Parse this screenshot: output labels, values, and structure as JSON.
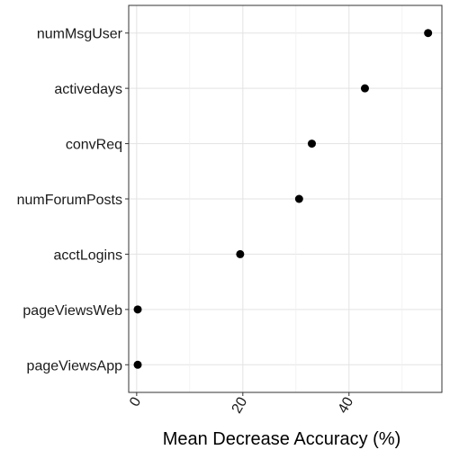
{
  "chart_data": {
    "type": "scatter",
    "title": "",
    "xlabel": "Mean Decrease Accuracy (%)",
    "ylabel": "",
    "xlim": [
      -1.5,
      57.5
    ],
    "xticks": [
      0,
      20,
      40
    ],
    "xtick_rotation_deg": -60,
    "grid": true,
    "legend": "none",
    "categories": [
      "numMsgUser",
      "activedays",
      "convReq",
      "numForumPosts",
      "acctLogins",
      "pageViewsWeb",
      "pageViewsApp"
    ],
    "values": [
      54.9,
      43.0,
      33.0,
      30.6,
      19.5,
      0.2,
      0.2
    ],
    "point_color": "#000000"
  }
}
